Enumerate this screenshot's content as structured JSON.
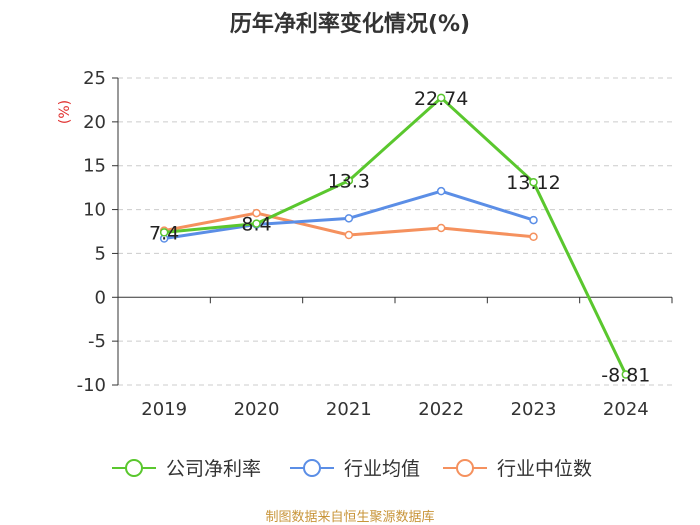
{
  "chart_data": {
    "type": "line",
    "title": "历年净利率变化情况(%)",
    "xlabel": "",
    "ylabel": "(%)",
    "categories": [
      "2019",
      "2020",
      "2021",
      "2022",
      "2023",
      "2024"
    ],
    "ylim": [
      -10,
      25
    ],
    "yticks": [
      25,
      20,
      15,
      10,
      5,
      0,
      -5,
      -10
    ],
    "grid": true,
    "legend_position": "bottom",
    "series": [
      {
        "name": "公司净利率",
        "color": "#5ac72e",
        "values": [
          7.4,
          8.4,
          13.3,
          22.74,
          13.12,
          -8.81
        ],
        "data_labels": [
          "7.4",
          "8.4",
          "13.3",
          "22.74",
          "13.12",
          "-8.81"
        ]
      },
      {
        "name": "行业均值",
        "color": "#5b8ee6",
        "values": [
          6.7,
          8.3,
          9.0,
          12.1,
          8.8,
          null
        ]
      },
      {
        "name": "行业中位数",
        "color": "#f5915e",
        "values": [
          7.6,
          9.6,
          7.1,
          7.9,
          6.9,
          null
        ]
      }
    ]
  },
  "source_text": "制图数据来自恒生聚源数据库",
  "colors": {
    "axis": "#333333",
    "grid": "#cccccc",
    "ylabel": "#e0312f",
    "source": "#c8953a"
  }
}
